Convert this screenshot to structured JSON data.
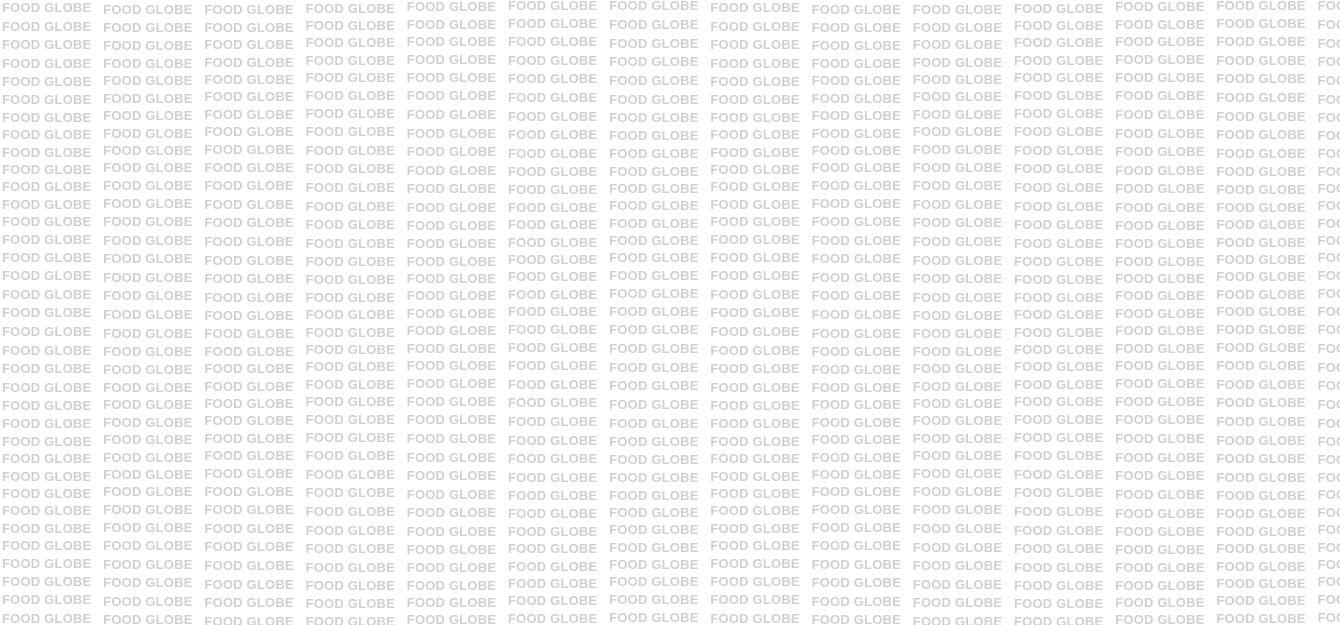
{
  "pattern": {
    "text": "FOOD GLOBE"
  },
  "colors": {
    "background": "#ffffff",
    "text": "#d0d0d0"
  }
}
